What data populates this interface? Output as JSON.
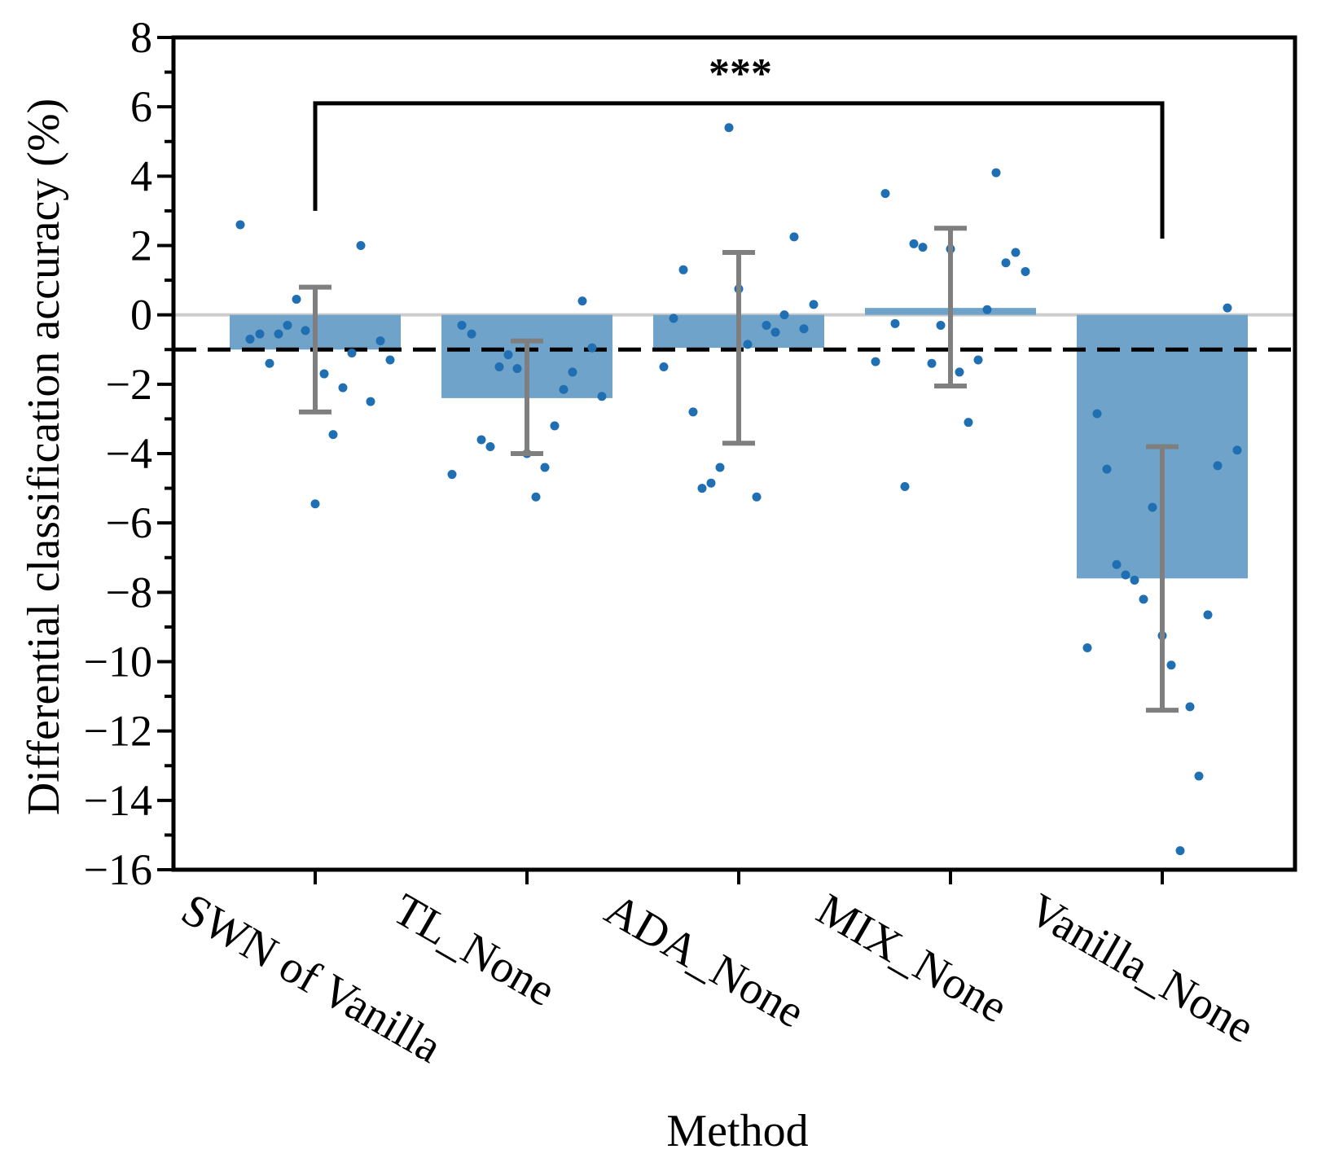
{
  "chart_data": {
    "type": "bar",
    "title": "",
    "xlabel": "Method",
    "ylabel": "Differential classification accuracy (%)",
    "ylim": [
      -16,
      8
    ],
    "yticks": [
      8,
      6,
      4,
      2,
      0,
      -2,
      -4,
      -6,
      -8,
      -10,
      -12,
      -14,
      -16
    ],
    "ytick_labels": [
      "8",
      "6",
      "4",
      "2",
      "0",
      "−2",
      "−4",
      "−6",
      "−8",
      "−10",
      "−12",
      "−14",
      "−16"
    ],
    "categories": [
      "SWN of Vanilla",
      "TL_None",
      "ADA_None",
      "MIX_None",
      "Vanilla_None"
    ],
    "values": [
      -1.0,
      -2.4,
      -0.95,
      0.2,
      -7.6
    ],
    "error_low": [
      -2.8,
      -4.0,
      -3.7,
      -2.05,
      -11.4
    ],
    "error_high": [
      0.8,
      -0.75,
      1.8,
      2.5,
      -3.8
    ],
    "reference_line": -1.0,
    "zero_line": 0,
    "significance": {
      "from": "SWN of Vanilla",
      "to": "Vanilla_None",
      "label": "***",
      "bracket_y": 6.1
    },
    "points": [
      [
        2.6,
        -0.7,
        -0.55,
        -1.4,
        -0.55,
        -0.3,
        0.45,
        -0.45,
        -5.45,
        -1.7,
        -3.45,
        -2.1,
        -1.1,
        2.0,
        -2.5,
        -0.75,
        -1.3
      ],
      [
        -4.6,
        -0.3,
        -0.55,
        -3.6,
        -3.8,
        -1.5,
        -1.15,
        -1.55,
        -4.0,
        -5.25,
        -4.4,
        -3.2,
        -2.15,
        -1.65,
        0.4,
        -0.95,
        -2.35
      ],
      [
        -1.5,
        -0.1,
        1.3,
        -2.8,
        -5.0,
        -4.85,
        -4.4,
        5.4,
        0.75,
        -0.85,
        -5.25,
        -0.3,
        -0.5,
        0.0,
        2.25,
        -0.4,
        0.3
      ],
      [
        -1.35,
        3.5,
        -0.25,
        -4.95,
        2.05,
        1.95,
        -1.4,
        -0.3,
        1.9,
        -1.65,
        -3.1,
        -1.3,
        0.15,
        4.1,
        1.5,
        1.8,
        1.25
      ],
      [
        -9.6,
        -2.85,
        -4.45,
        -7.2,
        -7.5,
        -7.65,
        -8.2,
        -5.55,
        -9.25,
        -10.1,
        -15.45,
        -11.3,
        -13.3,
        -8.65,
        -4.35,
        0.2,
        -3.9
      ]
    ],
    "colors": {
      "bar": "#6fa3c9",
      "point": "#1f6fb2",
      "error": "#7f7f7f",
      "zero": "#cccccc",
      "reference": "#000000"
    }
  }
}
